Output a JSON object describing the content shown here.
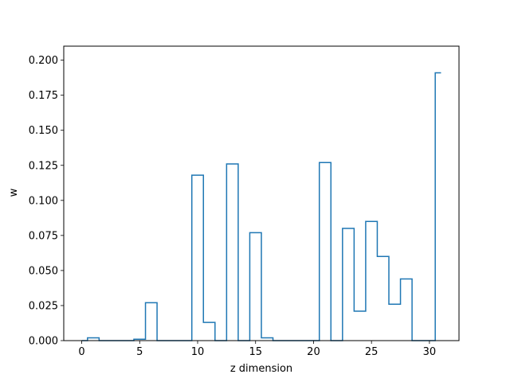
{
  "chart_data": {
    "type": "line",
    "style": "step",
    "title": "",
    "xlabel": "z dimension",
    "ylabel": "w",
    "xlim": [
      -1.55,
      32.55
    ],
    "ylim": [
      0,
      0.21
    ],
    "x_ticks": [
      0,
      5,
      10,
      15,
      20,
      25,
      30
    ],
    "y_ticks": [
      0.0,
      0.025,
      0.05,
      0.075,
      0.1,
      0.125,
      0.15,
      0.175,
      0.2
    ],
    "x_tick_labels": [
      "0",
      "5",
      "10",
      "15",
      "20",
      "25",
      "30"
    ],
    "y_tick_labels": [
      "0.000",
      "0.025",
      "0.050",
      "0.075",
      "0.100",
      "0.125",
      "0.150",
      "0.175",
      "0.200"
    ],
    "grid": false,
    "line_color": "#1f77b4",
    "series": [
      {
        "x": [
          0,
          1,
          2,
          3,
          4,
          5,
          6,
          7,
          8,
          9,
          10,
          11,
          12,
          13,
          14,
          15,
          16,
          17,
          18,
          19,
          20,
          21,
          22,
          23,
          24,
          25,
          26,
          27,
          28,
          29,
          30,
          31
        ],
        "values": [
          0.0,
          0.002,
          0.0,
          0.0,
          0.0,
          0.001,
          0.027,
          0.0,
          0.0,
          0.0,
          0.118,
          0.013,
          0.0,
          0.126,
          0.0,
          0.077,
          0.002,
          0.0,
          0.0,
          0.0,
          0.0,
          0.127,
          0.0,
          0.08,
          0.021,
          0.085,
          0.06,
          0.026,
          0.044,
          0.0,
          0.0,
          0.191
        ]
      }
    ]
  }
}
